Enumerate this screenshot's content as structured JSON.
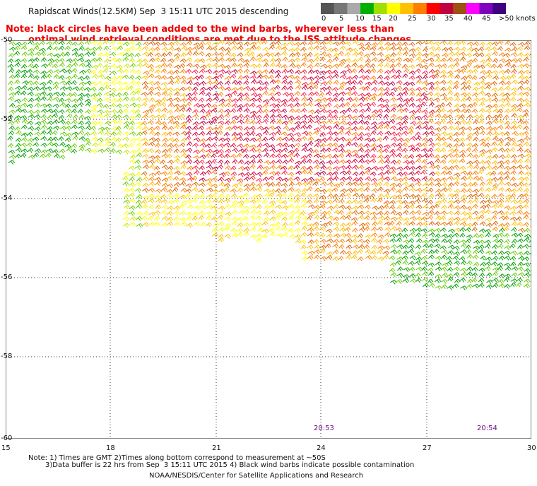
{
  "header": {
    "title": "Rapidscat Winds(12.5KM) Sep  3 15:11 UTC 2015 descending",
    "note_line1": "Note: black circles have been added to the wind barbs, wherever less than",
    "note_line2": "optimal wind retrieval conditions are met due to the ISS attitude changes."
  },
  "colorbar": {
    "labels": [
      "0",
      "5",
      "10",
      "15",
      "20",
      "25",
      "30",
      "35",
      "40",
      "45",
      ">50 knots"
    ],
    "colors": [
      "#555555",
      "#777777",
      "#aaaaaa",
      "#00b000",
      "#a0e000",
      "#ffff00",
      "#ffc000",
      "#ff8000",
      "#ff0000",
      "#c00040",
      "#a05010",
      "#ff00ff",
      "#8000c0",
      "#400080"
    ]
  },
  "axes": {
    "lat_labels": [
      "-50",
      "-52",
      "-54",
      "-56",
      "-58",
      "-60"
    ],
    "lon_labels": [
      "15",
      "18",
      "21",
      "24",
      "27",
      "30"
    ]
  },
  "time_marks": [
    "20:53",
    "20:54"
  ],
  "footer": {
    "line1": "Note: 1) Times are GMT 2)Times along bottom correspond to measurement at ~50S",
    "line2": "3)Data buffer is 22 hrs from Sep  3 15:11 UTC 2015 4) Black wind barbs indicate possible contamination",
    "line3": "NOAA/NESDIS/Center for Satellite Applications and Research"
  }
}
